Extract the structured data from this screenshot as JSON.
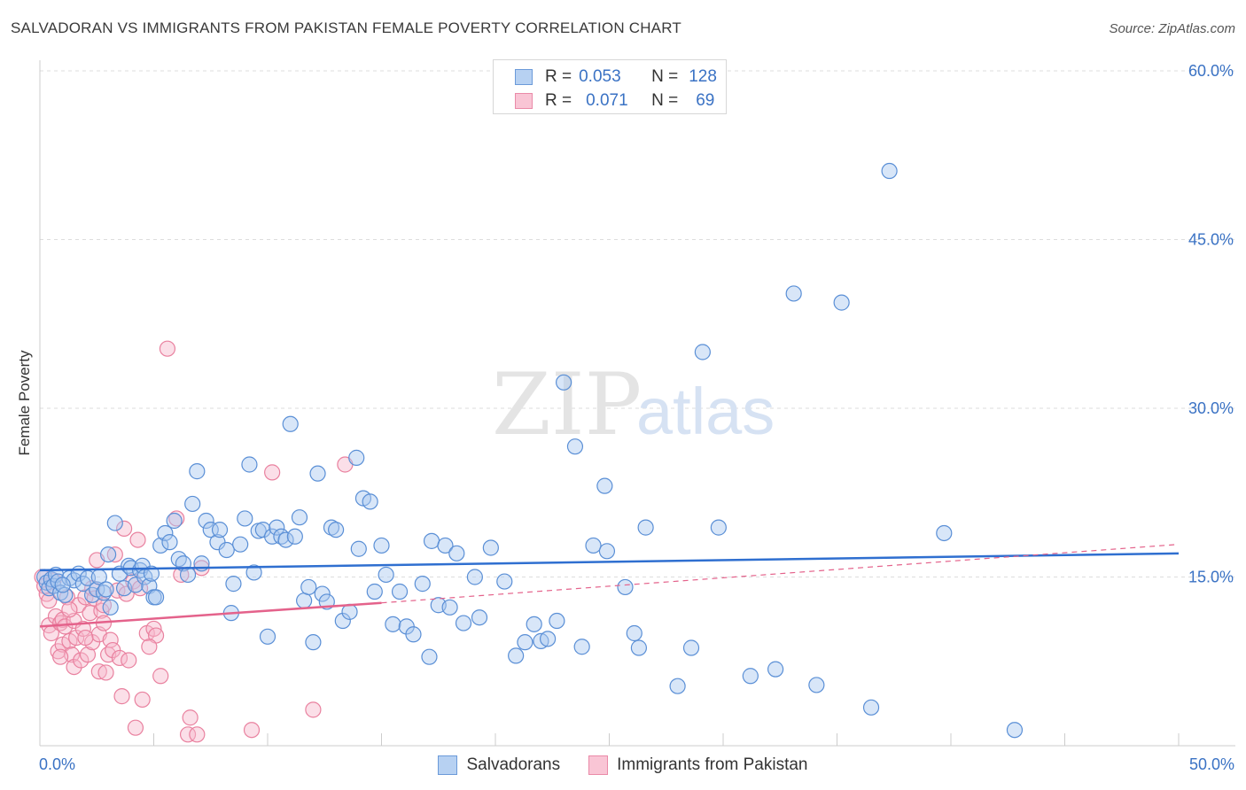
{
  "header": {
    "title": "SALVADORAN VS IMMIGRANTS FROM PAKISTAN FEMALE POVERTY CORRELATION CHART",
    "source": "Source: ZipAtlas.com"
  },
  "watermark": {
    "zip": "ZIP",
    "atlas": "atlas"
  },
  "legend_top": {
    "rows": [
      {
        "r_label": "R =",
        "r_value": "0.053",
        "n_label": "N =",
        "n_value": "128"
      },
      {
        "r_label": "R =",
        "r_value": "0.071",
        "n_label": "N =",
        "n_value": "69"
      }
    ]
  },
  "legend_bottom": {
    "items": [
      "Salvadorans",
      "Immigrants from Pakistan"
    ]
  },
  "colors": {
    "blue_fill": "#a9c8ef",
    "blue_stroke": "#5a8fd6",
    "blue_line": "#2f6fd0",
    "pink_fill": "#f6b8cc",
    "pink_stroke": "#e9819f",
    "pink_line": "#e4628b",
    "axis_text": "#3a72c4",
    "grid": "#dddddd"
  },
  "chart_data": {
    "type": "scatter",
    "title": "SALVADORAN VS IMMIGRANTS FROM PAKISTAN FEMALE POVERTY CORRELATION CHART",
    "xlabel": "",
    "ylabel": "Female Poverty",
    "xlim": [
      0,
      50
    ],
    "ylim": [
      0,
      60
    ],
    "x_tick_labels": [
      "0.0%",
      "50.0%"
    ],
    "y_ticks": [
      15,
      30,
      45,
      60
    ],
    "y_tick_labels": [
      "15.0%",
      "30.0%",
      "45.0%",
      "60.0%"
    ],
    "grid": "horizontal dashed",
    "legend_placement": "top-center",
    "series": [
      {
        "name": "Salvadorans",
        "r": 0.053,
        "n": 128,
        "trend": {
          "x": [
            0,
            50
          ],
          "y": [
            15.6,
            17.1
          ],
          "style": "solid"
        },
        "points": [
          [
            0.2,
            15.0
          ],
          [
            0.3,
            14.5
          ],
          [
            0.4,
            14.0
          ],
          [
            0.5,
            14.8
          ],
          [
            0.6,
            14.2
          ],
          [
            0.7,
            15.2
          ],
          [
            0.8,
            14.6
          ],
          [
            0.9,
            13.6
          ],
          [
            1.1,
            13.4
          ],
          [
            1.3,
            14.9
          ],
          [
            1.5,
            14.7
          ],
          [
            1.7,
            15.3
          ],
          [
            1.9,
            14.4
          ],
          [
            2.1,
            14.9
          ],
          [
            2.3,
            13.4
          ],
          [
            2.5,
            13.9
          ],
          [
            2.6,
            15.0
          ],
          [
            2.8,
            13.6
          ],
          [
            2.9,
            13.9
          ],
          [
            3.0,
            17.0
          ],
          [
            3.1,
            12.3
          ],
          [
            3.3,
            19.8
          ],
          [
            3.5,
            15.3
          ],
          [
            3.7,
            14.0
          ],
          [
            3.9,
            16.0
          ],
          [
            4.0,
            15.8
          ],
          [
            4.2,
            14.3
          ],
          [
            4.4,
            15.6
          ],
          [
            4.5,
            16.0
          ],
          [
            4.6,
            15.0
          ],
          [
            4.8,
            14.2
          ],
          [
            4.9,
            15.3
          ],
          [
            5.0,
            13.2
          ],
          [
            5.1,
            13.2
          ],
          [
            5.3,
            17.8
          ],
          [
            5.5,
            18.9
          ],
          [
            5.7,
            18.1
          ],
          [
            5.9,
            20.0
          ],
          [
            6.1,
            16.6
          ],
          [
            6.3,
            16.2
          ],
          [
            6.5,
            15.2
          ],
          [
            6.7,
            21.5
          ],
          [
            6.9,
            24.4
          ],
          [
            7.1,
            16.2
          ],
          [
            7.3,
            20.0
          ],
          [
            7.5,
            19.2
          ],
          [
            7.8,
            18.1
          ],
          [
            7.9,
            19.2
          ],
          [
            8.2,
            17.4
          ],
          [
            8.4,
            11.8
          ],
          [
            8.5,
            14.4
          ],
          [
            8.8,
            17.9
          ],
          [
            9.0,
            20.2
          ],
          [
            9.2,
            25.0
          ],
          [
            9.4,
            15.4
          ],
          [
            9.6,
            19.1
          ],
          [
            9.8,
            19.2
          ],
          [
            10.0,
            9.7
          ],
          [
            10.2,
            18.6
          ],
          [
            10.4,
            19.4
          ],
          [
            10.6,
            18.6
          ],
          [
            10.8,
            18.3
          ],
          [
            11.0,
            28.6
          ],
          [
            11.2,
            18.6
          ],
          [
            11.4,
            20.3
          ],
          [
            11.6,
            12.9
          ],
          [
            11.8,
            14.1
          ],
          [
            12.0,
            9.2
          ],
          [
            12.2,
            24.2
          ],
          [
            12.4,
            13.5
          ],
          [
            12.6,
            12.8
          ],
          [
            12.8,
            19.4
          ],
          [
            13.0,
            19.2
          ],
          [
            13.3,
            11.1
          ],
          [
            13.6,
            11.9
          ],
          [
            13.9,
            25.6
          ],
          [
            14.0,
            17.5
          ],
          [
            14.2,
            22.0
          ],
          [
            14.5,
            21.7
          ],
          [
            14.7,
            13.7
          ],
          [
            15.0,
            17.8
          ],
          [
            15.2,
            15.2
          ],
          [
            15.5,
            10.8
          ],
          [
            15.8,
            13.7
          ],
          [
            16.1,
            10.6
          ],
          [
            16.4,
            9.9
          ],
          [
            16.8,
            14.4
          ],
          [
            17.1,
            7.9
          ],
          [
            17.2,
            18.2
          ],
          [
            17.5,
            12.5
          ],
          [
            17.8,
            17.8
          ],
          [
            18.0,
            12.3
          ],
          [
            18.3,
            17.1
          ],
          [
            18.6,
            10.9
          ],
          [
            19.1,
            15.0
          ],
          [
            19.3,
            11.4
          ],
          [
            19.8,
            17.6
          ],
          [
            20.4,
            14.6
          ],
          [
            20.9,
            8.0
          ],
          [
            21.3,
            9.2
          ],
          [
            21.7,
            10.8
          ],
          [
            22.0,
            9.3
          ],
          [
            22.3,
            9.5
          ],
          [
            22.7,
            11.1
          ],
          [
            23.0,
            32.3
          ],
          [
            23.5,
            26.6
          ],
          [
            23.8,
            8.8
          ],
          [
            24.3,
            17.8
          ],
          [
            24.8,
            23.1
          ],
          [
            24.9,
            17.3
          ],
          [
            25.7,
            14.1
          ],
          [
            26.1,
            10.0
          ],
          [
            26.3,
            8.7
          ],
          [
            26.6,
            19.4
          ],
          [
            28.0,
            5.3
          ],
          [
            28.6,
            8.7
          ],
          [
            29.1,
            35.0
          ],
          [
            29.8,
            19.4
          ],
          [
            31.2,
            6.2
          ],
          [
            32.3,
            6.8
          ],
          [
            33.1,
            40.2
          ],
          [
            34.1,
            5.4
          ],
          [
            35.2,
            39.4
          ],
          [
            36.5,
            3.4
          ],
          [
            37.3,
            51.1
          ],
          [
            39.7,
            18.9
          ],
          [
            42.8,
            1.4
          ],
          [
            1.0,
            14.3
          ]
        ]
      },
      {
        "name": "Immigrants from Pakistan",
        "r": 0.071,
        "n": 69,
        "trend": {
          "x": [
            0,
            15
          ],
          "y": [
            10.6,
            12.7
          ],
          "style": "solid",
          "dashed_extension": {
            "x": [
              15,
              50
            ],
            "y": [
              12.7,
              17.9
            ]
          }
        },
        "points": [
          [
            0.1,
            15.0
          ],
          [
            0.2,
            14.2
          ],
          [
            0.3,
            13.5
          ],
          [
            0.4,
            12.9
          ],
          [
            0.4,
            10.7
          ],
          [
            0.5,
            10.0
          ],
          [
            0.6,
            14.7
          ],
          [
            0.7,
            11.5
          ],
          [
            0.8,
            8.4
          ],
          [
            0.9,
            10.9
          ],
          [
            1.0,
            9.0
          ],
          [
            1.0,
            11.2
          ],
          [
            1.1,
            10.6
          ],
          [
            1.2,
            13.2
          ],
          [
            1.3,
            9.3
          ],
          [
            1.4,
            8.1
          ],
          [
            1.5,
            11.1
          ],
          [
            1.5,
            7.0
          ],
          [
            1.6,
            9.6
          ],
          [
            1.7,
            12.5
          ],
          [
            1.8,
            7.6
          ],
          [
            1.9,
            10.4
          ],
          [
            2.0,
            13.2
          ],
          [
            2.1,
            8.1
          ],
          [
            2.2,
            11.8
          ],
          [
            2.3,
            9.2
          ],
          [
            2.3,
            14.0
          ],
          [
            2.4,
            13.1
          ],
          [
            2.5,
            16.5
          ],
          [
            2.6,
            9.9
          ],
          [
            2.6,
            6.6
          ],
          [
            2.7,
            12.0
          ],
          [
            2.8,
            12.5
          ],
          [
            2.8,
            10.9
          ],
          [
            2.9,
            6.5
          ],
          [
            3.0,
            8.1
          ],
          [
            3.1,
            9.4
          ],
          [
            3.2,
            8.5
          ],
          [
            3.3,
            17.0
          ],
          [
            3.4,
            13.8
          ],
          [
            3.5,
            7.8
          ],
          [
            3.6,
            4.4
          ],
          [
            3.7,
            19.3
          ],
          [
            3.8,
            13.5
          ],
          [
            3.9,
            7.6
          ],
          [
            4.1,
            14.6
          ],
          [
            4.2,
            1.6
          ],
          [
            4.3,
            18.3
          ],
          [
            4.4,
            14.0
          ],
          [
            4.5,
            4.1
          ],
          [
            4.7,
            10.0
          ],
          [
            5.0,
            10.4
          ],
          [
            5.1,
            9.8
          ],
          [
            5.3,
            6.2
          ],
          [
            5.6,
            35.3
          ],
          [
            6.0,
            20.2
          ],
          [
            6.2,
            15.2
          ],
          [
            6.5,
            1.0
          ],
          [
            6.6,
            2.5
          ],
          [
            6.9,
            1.0
          ],
          [
            7.1,
            15.8
          ],
          [
            9.3,
            1.4
          ],
          [
            10.2,
            24.3
          ],
          [
            12.0,
            3.2
          ],
          [
            13.4,
            25.0
          ],
          [
            4.8,
            8.8
          ],
          [
            2.0,
            9.6
          ],
          [
            0.9,
            7.9
          ],
          [
            1.3,
            12.1
          ]
        ]
      }
    ]
  }
}
